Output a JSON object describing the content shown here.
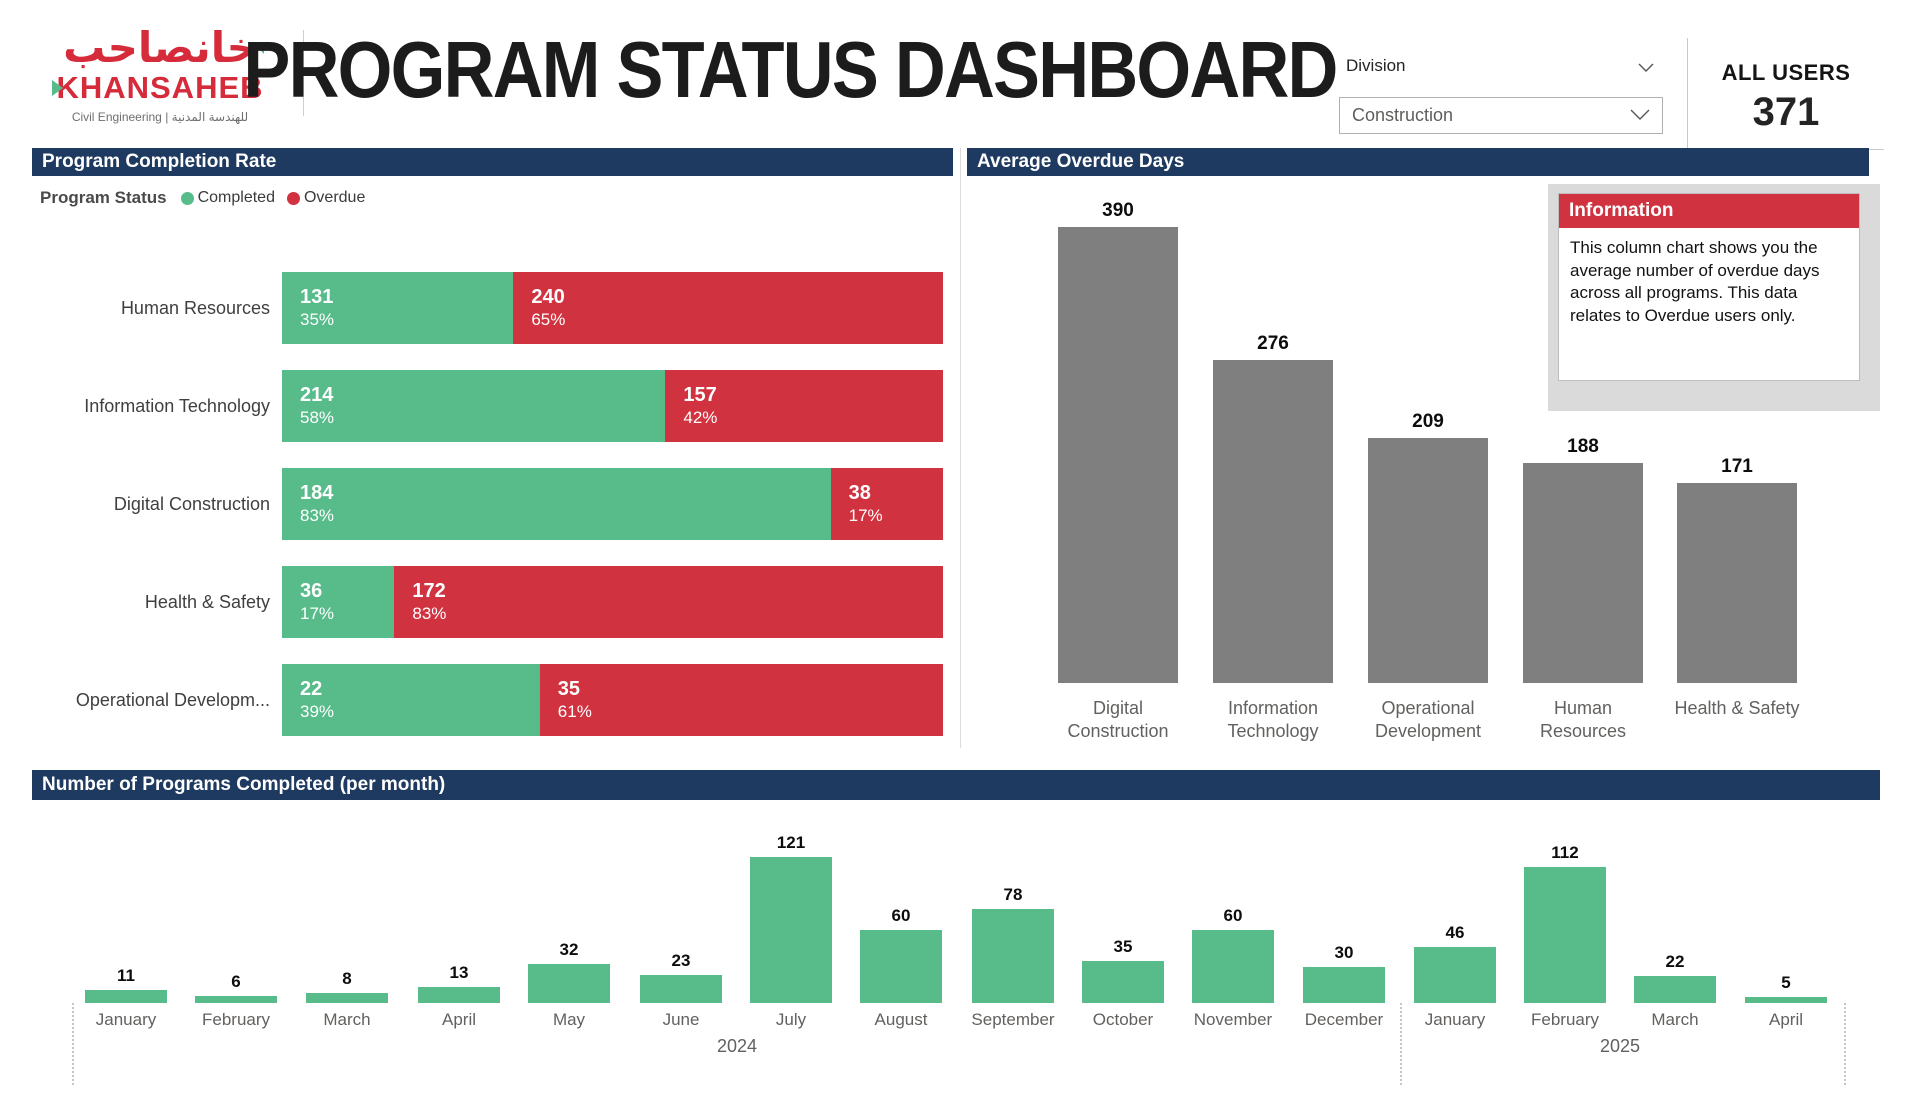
{
  "header": {
    "logo": {
      "arabic": "خانصاحب",
      "name": "KHANSAHEB",
      "tagline": "Civil Engineering | للهندسة المدنية"
    },
    "title": "PROGRAM STATUS DASHBOARD",
    "division": {
      "label": "Division",
      "selected": "Construction"
    },
    "all_users": {
      "label": "ALL USERS",
      "value": "371"
    }
  },
  "colors": {
    "navy_header": "#1F3A60",
    "completed_green": "#57BB8A",
    "overdue_red": "#D0323F",
    "neutral_gray_bar": "#7F7F7F",
    "brand_red": "#D52B3B"
  },
  "chart_data": [
    {
      "type": "bar",
      "subtype": "horizontal-stacked-100pct",
      "title": "Program Completion Rate",
      "legend_title": "Program Status",
      "legend": [
        "Completed",
        "Overdue"
      ],
      "legend_position": "top-left",
      "categories": [
        "Human Resources",
        "Information Technology",
        "Digital Construction",
        "Health & Safety",
        "Operational Developm..."
      ],
      "series": [
        {
          "name": "Completed",
          "color": "#57BB8A",
          "values": [
            131,
            214,
            184,
            36,
            22
          ],
          "pct": [
            35,
            58,
            83,
            17,
            39
          ],
          "pct_labels": [
            "35%",
            "58%",
            "83%",
            "17%",
            "39%"
          ]
        },
        {
          "name": "Overdue",
          "color": "#D0323F",
          "values": [
            240,
            157,
            38,
            172,
            35
          ],
          "pct": [
            65,
            42,
            17,
            83,
            61
          ],
          "pct_labels": [
            "65%",
            "42%",
            "17%",
            "83%",
            "61%"
          ]
        }
      ]
    },
    {
      "type": "bar",
      "subtype": "vertical-column",
      "title": "Average Overdue Days",
      "categories": [
        "Digital Construction",
        "Information Technology",
        "Operational Development",
        "Human Resources",
        "Health & Safety"
      ],
      "values": [
        390,
        276,
        209,
        188,
        171
      ],
      "bar_color": "#7F7F7F",
      "data_labels": "on",
      "info_box": {
        "title": "Information",
        "text": "This column chart shows you the average number of overdue days across all programs. This data relates to Overdue users only."
      }
    },
    {
      "type": "bar",
      "subtype": "vertical-column",
      "title": "Number of Programs Completed (per month)",
      "categories": [
        "January",
        "February",
        "March",
        "April",
        "May",
        "June",
        "July",
        "August",
        "September",
        "October",
        "November",
        "December",
        "January",
        "February",
        "March",
        "April"
      ],
      "values": [
        11,
        6,
        8,
        13,
        32,
        23,
        121,
        60,
        78,
        35,
        60,
        30,
        46,
        112,
        22,
        5
      ],
      "year_labels": [
        "2024",
        "2025"
      ],
      "year_groups": [
        {
          "label": "2024",
          "month_count": 12
        },
        {
          "label": "2025",
          "month_count": 4
        }
      ],
      "bar_color": "#57BB8A",
      "data_labels": "on"
    }
  ]
}
